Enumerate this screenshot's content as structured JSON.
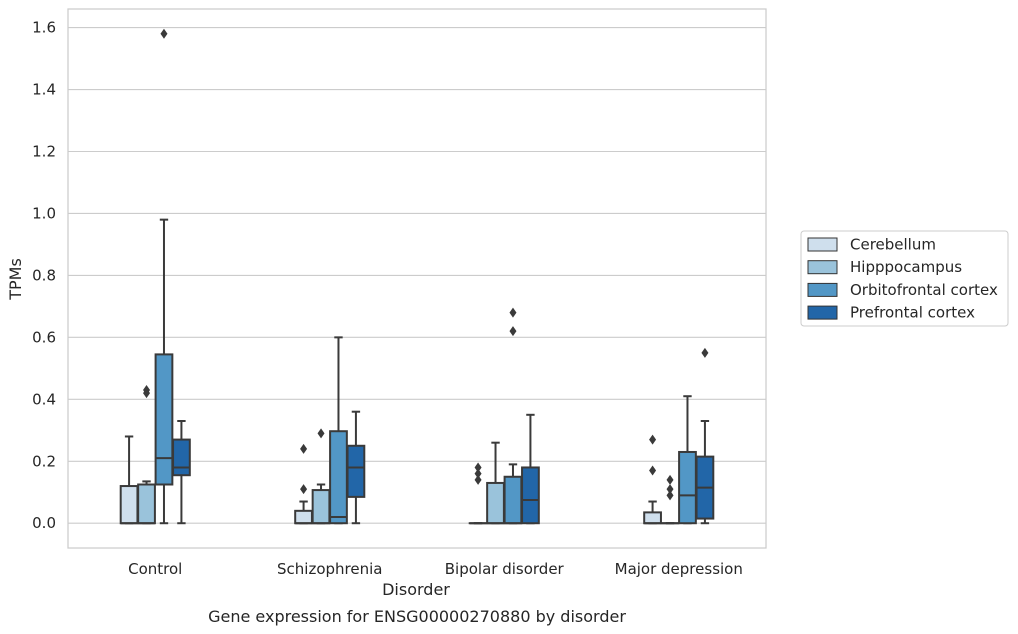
{
  "chart_data": {
    "type": "box",
    "caption": "Gene expression for ENSG00000270880 by disorder",
    "xlabel": "Disorder",
    "ylabel": "TPMs",
    "ylim": [
      -0.08,
      1.66
    ],
    "yticks": [
      "0.0",
      "0.2",
      "0.4",
      "0.6",
      "0.8",
      "1.0",
      "1.2",
      "1.4",
      "1.6"
    ],
    "ytick_values": [
      0.0,
      0.2,
      0.4,
      0.6,
      0.8,
      1.0,
      1.2,
      1.4,
      1.6
    ],
    "grid": true,
    "legend_position": "right",
    "categories": [
      "Control",
      "Schizophrenia",
      "Bipolar disorder",
      "Major depression"
    ],
    "series": [
      {
        "name": "Cerebellum",
        "color": "#cfdfed",
        "boxes": [
          {
            "min": 0.0,
            "q1": 0.0,
            "median": 0.0,
            "q3": 0.12,
            "max": 0.28,
            "outliers": []
          },
          {
            "min": 0.0,
            "q1": 0.0,
            "median": 0.0,
            "q3": 0.04,
            "max": 0.07,
            "outliers": [
              0.11,
              0.24
            ]
          },
          {
            "min": 0.0,
            "q1": 0.0,
            "median": 0.0,
            "q3": 0.0,
            "max": 0.0,
            "outliers": [
              0.14,
              0.16,
              0.18
            ]
          },
          {
            "min": 0.0,
            "q1": 0.0,
            "median": 0.0,
            "q3": 0.035,
            "max": 0.07,
            "outliers": [
              0.17,
              0.27
            ]
          }
        ]
      },
      {
        "name": "Hipppocampus",
        "color": "#9ac3db",
        "boxes": [
          {
            "min": 0.0,
            "q1": 0.0,
            "median": 0.0,
            "q3": 0.125,
            "max": 0.135,
            "outliers": [
              0.42,
              0.43
            ]
          },
          {
            "min": 0.0,
            "q1": 0.0,
            "median": 0.0,
            "q3": 0.107,
            "max": 0.125,
            "outliers": [
              0.29
            ]
          },
          {
            "min": 0.0,
            "q1": 0.0,
            "median": 0.0,
            "q3": 0.13,
            "max": 0.26,
            "outliers": []
          },
          {
            "min": 0.0,
            "q1": 0.0,
            "median": 0.0,
            "q3": 0.0,
            "max": 0.0,
            "outliers": [
              0.09,
              0.11,
              0.14
            ]
          }
        ]
      },
      {
        "name": "Orbitofrontal cortex",
        "color": "#5297c6",
        "boxes": [
          {
            "min": 0.0,
            "q1": 0.125,
            "median": 0.21,
            "q3": 0.545,
            "max": 0.98,
            "outliers": [
              1.58
            ]
          },
          {
            "min": 0.0,
            "q1": 0.0,
            "median": 0.02,
            "q3": 0.297,
            "max": 0.6,
            "outliers": []
          },
          {
            "min": 0.0,
            "q1": 0.0,
            "median": 0.0,
            "q3": 0.15,
            "max": 0.19,
            "outliers": [
              0.62,
              0.68
            ]
          },
          {
            "min": 0.0,
            "q1": 0.0,
            "median": 0.09,
            "q3": 0.23,
            "max": 0.41,
            "outliers": []
          }
        ]
      },
      {
        "name": "Prefrontal cortex",
        "color": "#2266a8",
        "boxes": [
          {
            "min": 0.0,
            "q1": 0.155,
            "median": 0.18,
            "q3": 0.27,
            "max": 0.33,
            "outliers": []
          },
          {
            "min": 0.0,
            "q1": 0.085,
            "median": 0.18,
            "q3": 0.25,
            "max": 0.36,
            "outliers": []
          },
          {
            "min": 0.0,
            "q1": 0.0,
            "median": 0.075,
            "q3": 0.18,
            "max": 0.35,
            "outliers": []
          },
          {
            "min": 0.0,
            "q1": 0.015,
            "median": 0.115,
            "q3": 0.215,
            "max": 0.33,
            "outliers": [
              0.55
            ]
          }
        ]
      }
    ]
  }
}
